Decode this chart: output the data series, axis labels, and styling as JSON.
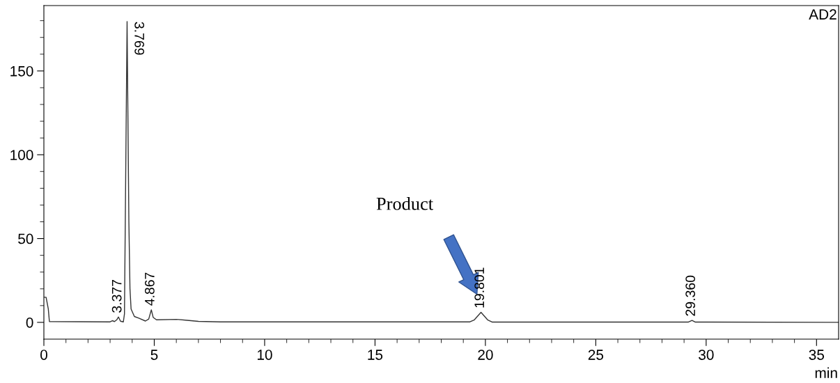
{
  "chart_data": {
    "type": "line",
    "xlabel": "min",
    "xlim": [
      0,
      36
    ],
    "ylim": [
      -10,
      189
    ],
    "xticks": [
      0,
      {
        "value": 1,
        "label": null
      },
      {
        "value": 2,
        "label": null
      },
      {
        "value": 3,
        "label": null
      },
      {
        "value": 4,
        "label": null
      },
      5,
      {
        "value": 6,
        "label": null
      },
      {
        "value": 7,
        "label": null
      },
      {
        "value": 8,
        "label": null
      },
      {
        "value": 9,
        "label": null
      },
      10,
      {
        "value": 11,
        "label": null
      },
      {
        "value": 12,
        "label": null
      },
      {
        "value": 13,
        "label": null
      },
      {
        "value": 14,
        "label": null
      },
      15,
      {
        "value": 16,
        "label": null
      },
      {
        "value": 17,
        "label": null
      },
      {
        "value": 18,
        "label": null
      },
      {
        "value": 19,
        "label": null
      },
      20,
      {
        "value": 21,
        "label": null
      },
      {
        "value": 22,
        "label": null
      },
      {
        "value": 23,
        "label": null
      },
      {
        "value": 24,
        "label": null
      },
      25,
      {
        "value": 26,
        "label": null
      },
      {
        "value": 27,
        "label": null
      },
      {
        "value": 28,
        "label": null
      },
      {
        "value": 29,
        "label": null
      },
      30,
      {
        "value": 31,
        "label": null
      },
      {
        "value": 32,
        "label": null
      },
      {
        "value": 33,
        "label": null
      },
      {
        "value": 34,
        "label": null
      },
      35
    ],
    "yticks": [
      0,
      {
        "value": 10,
        "label": null
      },
      {
        "value": 20,
        "label": null
      },
      {
        "value": 30,
        "label": null
      },
      {
        "value": 40,
        "label": null
      },
      50,
      {
        "value": 60,
        "label": null
      },
      {
        "value": 70,
        "label": null
      },
      {
        "value": 80,
        "label": null
      },
      {
        "value": 90,
        "label": null
      },
      100,
      {
        "value": 110,
        "label": null
      },
      {
        "value": 120,
        "label": null
      },
      {
        "value": 130,
        "label": null
      },
      {
        "value": 140,
        "label": null
      },
      150,
      {
        "value": 160,
        "label": null
      },
      {
        "value": 170,
        "label": null
      },
      {
        "value": 180,
        "label": null
      }
    ],
    "grid": false,
    "legend": false,
    "marker": "none",
    "line_style": "solid",
    "series": [
      {
        "color": "#333333",
        "x": [
          0,
          0.1,
          0.2,
          0.25,
          3.0,
          3.1,
          3.2,
          3.3,
          3.38,
          3.47,
          3.6,
          3.65,
          3.769,
          3.85,
          3.9,
          3.95,
          4.1,
          4.3,
          4.6,
          4.75,
          4.867,
          4.95,
          5.1,
          6,
          6.5,
          7,
          8,
          19.3,
          19.5,
          19.801,
          20.1,
          20.3,
          29.2,
          29.36,
          29.5,
          36
        ],
        "values": [
          15,
          15,
          8,
          0.5,
          0.3,
          1,
          0.5,
          1.5,
          3.2,
          0.7,
          0.3,
          5,
          179.5,
          60,
          20,
          8,
          3.5,
          2.5,
          0.8,
          2,
          7.5,
          3,
          1.5,
          1.8,
          1.2,
          0.6,
          0.3,
          0.3,
          1.5,
          6,
          1.5,
          0.2,
          0.2,
          1.2,
          0.2,
          0
        ]
      }
    ],
    "annotations": [
      "AD2",
      {
        "text": "3.769",
        "x": 3.769,
        "y": 179.5
      },
      {
        "text": "3.377",
        "x": 3.377,
        "y": 3.2
      },
      {
        "text": "4.867",
        "x": 4.867,
        "y": 7.5
      },
      {
        "text": "19.801",
        "x": 19.801,
        "y": 6
      },
      {
        "text": "29.360",
        "x": 29.36,
        "y": 1.2
      },
      "Product"
    ]
  }
}
